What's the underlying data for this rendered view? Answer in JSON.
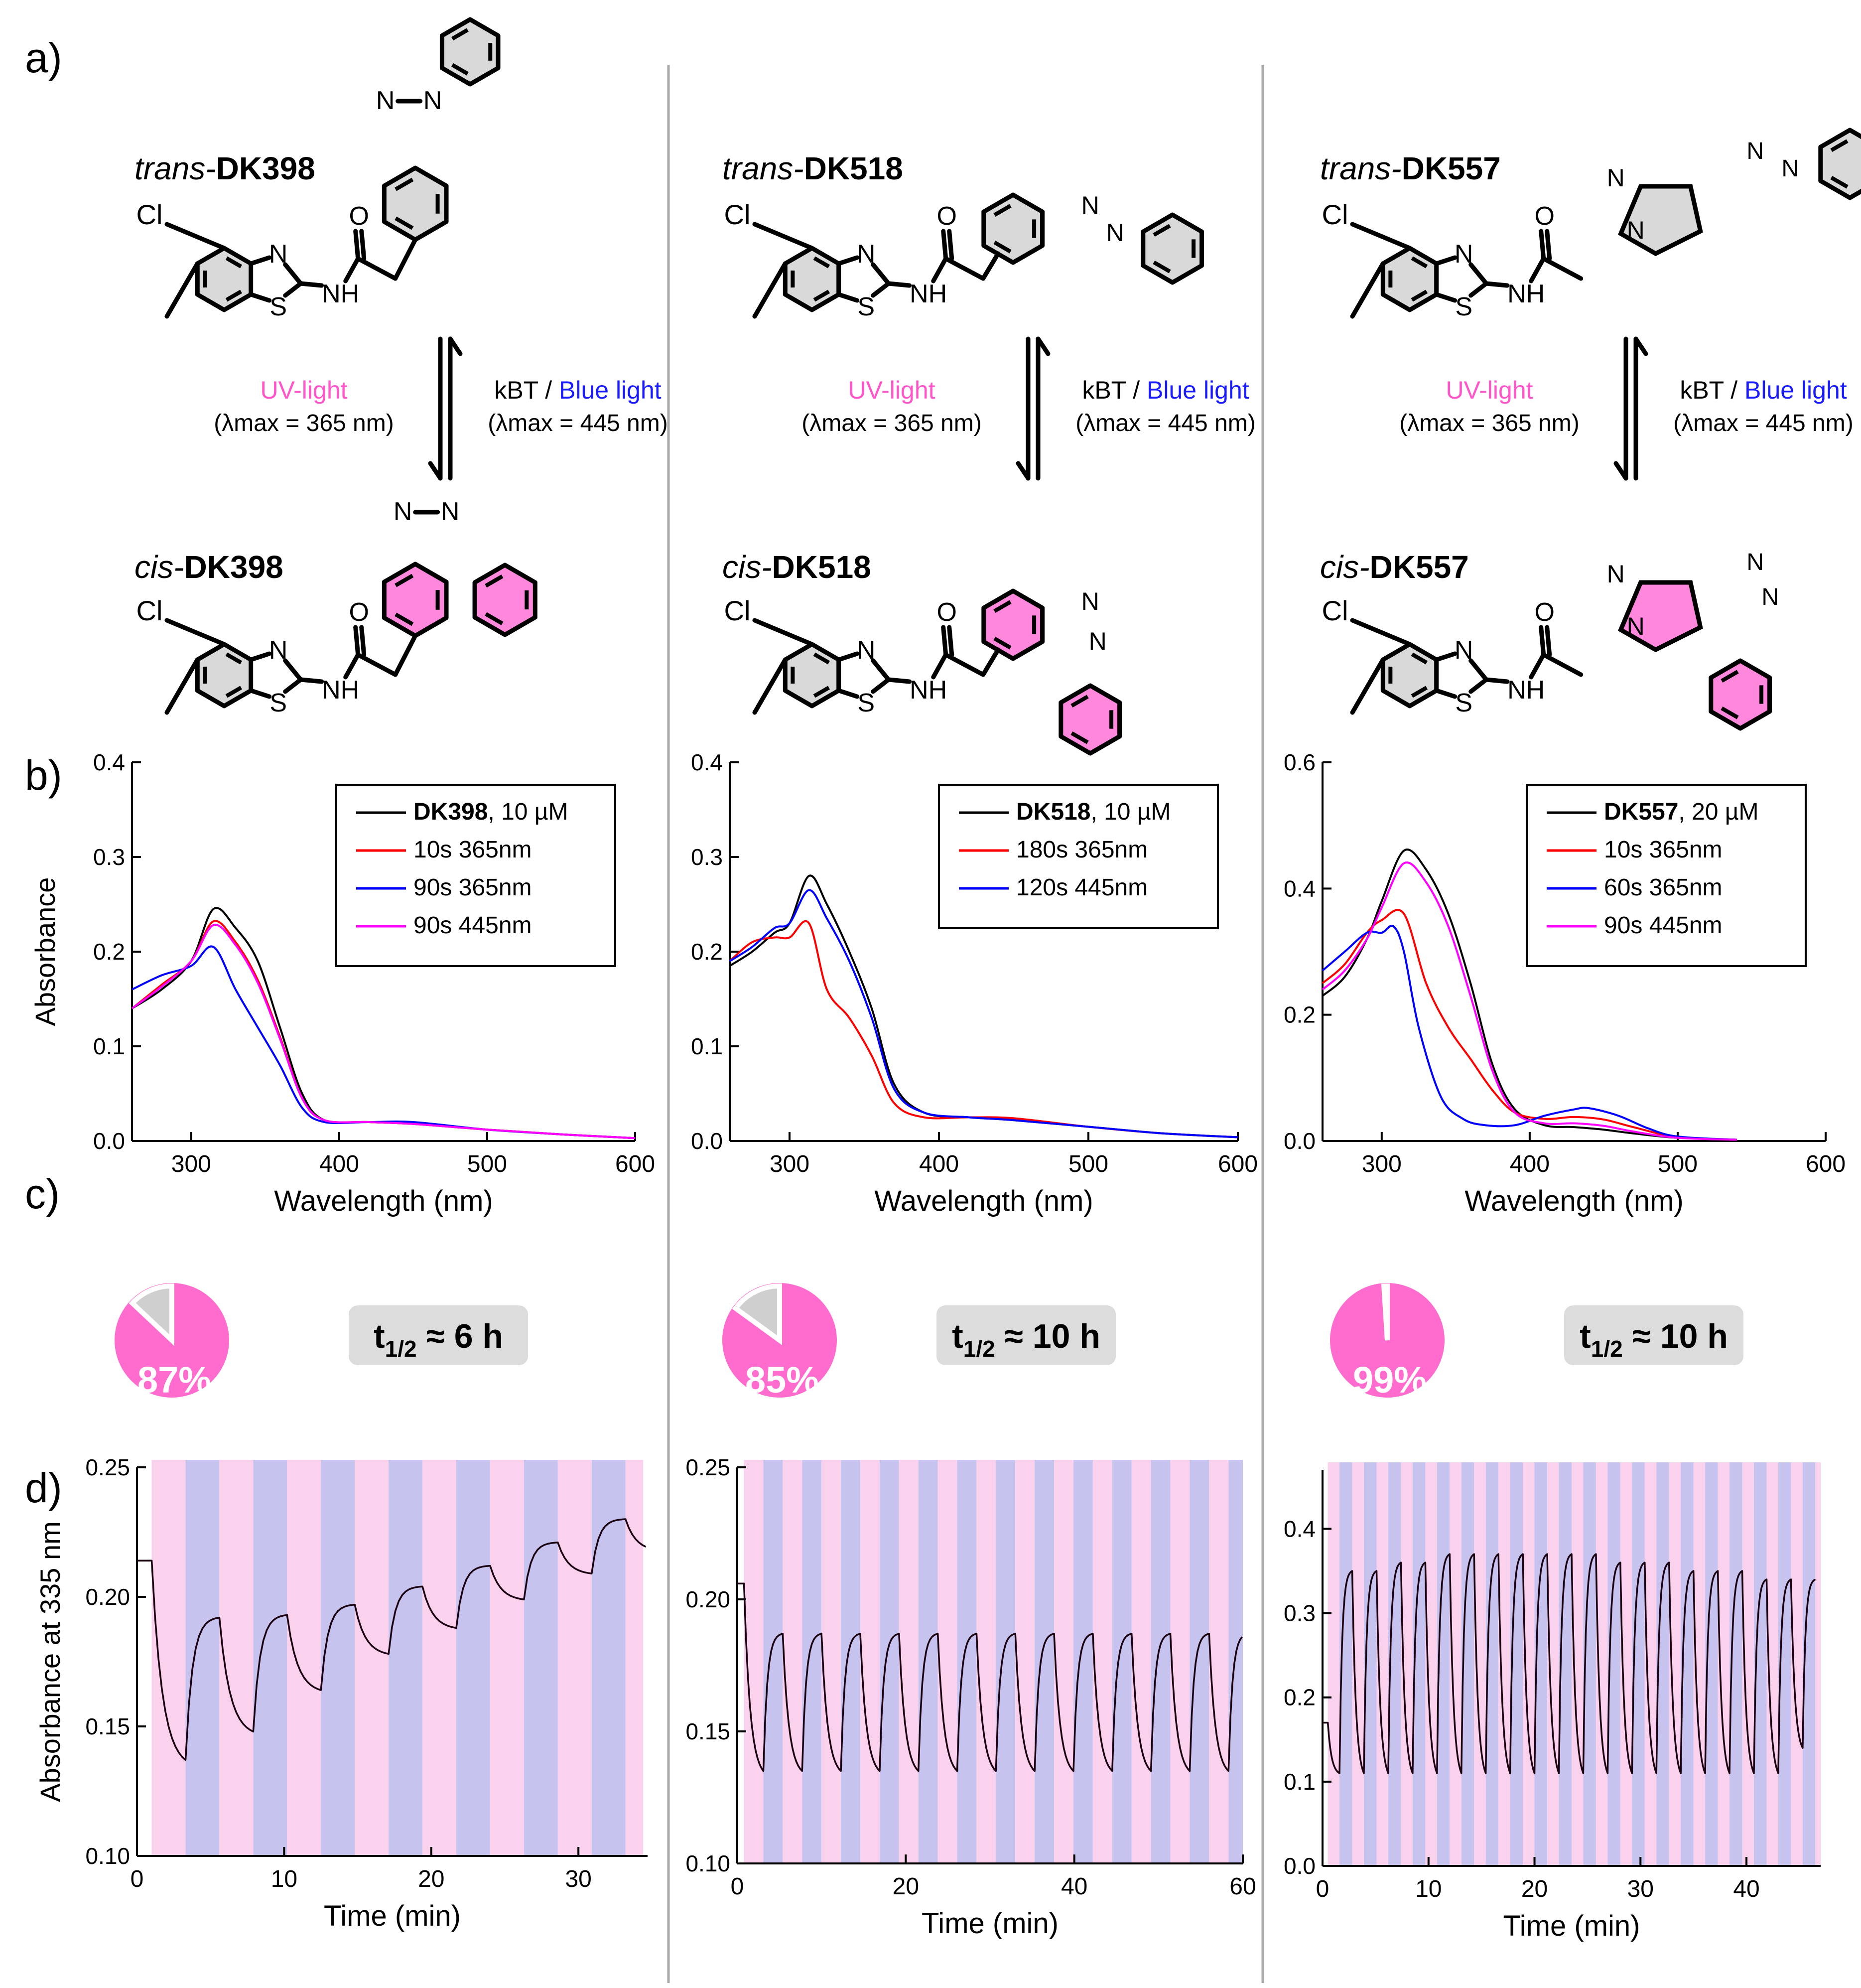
{
  "panel_letters": [
    "a)",
    "b)",
    "c)",
    "d)"
  ],
  "colors": {
    "uv_pink": "#ff55c8",
    "blue_label": "#1a1aff",
    "cis_ring_fill": "#ff88dd",
    "trans_ring_fill": "#d9d9d9",
    "pie_pink": "#ff6ccd",
    "pie_grey": "#cfcfcf",
    "stripe_pink": "#fbd2ee",
    "stripe_blue": "#c6c4ef",
    "series_black": "#000000",
    "series_red": "#ff0000",
    "series_blue": "#0000ff",
    "series_magenta": "#ff00ff"
  },
  "schemes": [
    {
      "compound": "DK398",
      "trans_prefix": "trans-",
      "cis_prefix": "cis-",
      "atoms": {
        "cl": "Cl",
        "n": "N",
        "s": "S",
        "nh": "NH",
        "o": "O"
      },
      "uv_label": "UV-light",
      "uv_lambda": "(λmax = 365 nm)",
      "thermal_label": "kBT / ",
      "blue_label": "Blue light",
      "blue_lambda": "(λmax = 445 nm)"
    },
    {
      "compound": "DK518",
      "trans_prefix": "trans-",
      "cis_prefix": "cis-",
      "atoms": {
        "cl": "Cl",
        "n": "N",
        "s": "S",
        "nh": "NH",
        "o": "O"
      },
      "uv_label": "UV-light",
      "uv_lambda": "(λmax = 365 nm)",
      "thermal_label": "kBT / ",
      "blue_label": "Blue light",
      "blue_lambda": "(λmax = 445 nm)"
    },
    {
      "compound": "DK557",
      "trans_prefix": "trans-",
      "cis_prefix": "cis-",
      "atoms": {
        "cl": "Cl",
        "n": "N",
        "s": "S",
        "nh": "NH",
        "o": "O"
      },
      "uv_label": "UV-light",
      "uv_lambda": "(λmax = 365 nm)",
      "thermal_label": "kBT / ",
      "blue_label": "Blue light",
      "blue_lambda": "(λmax = 445 nm)"
    }
  ],
  "pss": [
    {
      "compound": "DK398",
      "percent": 87,
      "label": "87%",
      "half_life": "t1/2 ≈ 6 h"
    },
    {
      "compound": "DK518",
      "percent": 85,
      "label": "85%",
      "half_life": "t1/2 ≈ 10 h"
    },
    {
      "compound": "DK557",
      "percent": 99,
      "label": "99%",
      "half_life": "t1/2 ≈ 10 h"
    }
  ],
  "chart_data": [
    {
      "id": "b1",
      "type": "line",
      "panel": "b",
      "xlabel": "Wavelength (nm)",
      "ylabel": "Absorbance",
      "xlim": [
        260,
        600
      ],
      "ylim": [
        0.0,
        0.4
      ],
      "xticks": [
        300,
        400,
        500,
        600
      ],
      "xtick_labels": [
        "300",
        "400",
        "500",
        "600"
      ],
      "yticks": [
        0.0,
        0.1,
        0.2,
        0.3,
        0.4
      ],
      "ytick_labels": [
        "0.0",
        "0.1",
        "0.2",
        "0.3",
        "0.4"
      ],
      "legend_position": "top-right",
      "series": [
        {
          "name": "DK398, 10 µM",
          "name_bold": "DK398",
          "name_rest": ", 10 µM",
          "color": "#000000",
          "x": [
            260,
            280,
            300,
            315,
            330,
            345,
            360,
            375,
            390,
            420,
            450,
            500,
            550,
            600
          ],
          "y": [
            0.14,
            0.16,
            0.19,
            0.245,
            0.225,
            0.19,
            0.12,
            0.05,
            0.022,
            0.02,
            0.018,
            0.012,
            0.007,
            0.003
          ]
        },
        {
          "name": "10s 365nm",
          "color": "#ff0000",
          "x": [
            260,
            280,
            300,
            315,
            330,
            345,
            360,
            375,
            390,
            420,
            450,
            500,
            550,
            600
          ],
          "y": [
            0.14,
            0.165,
            0.19,
            0.232,
            0.21,
            0.17,
            0.11,
            0.045,
            0.022,
            0.02,
            0.018,
            0.012,
            0.007,
            0.003
          ]
        },
        {
          "name": "90s 365nm",
          "color": "#0000ff",
          "x": [
            260,
            280,
            300,
            315,
            330,
            345,
            360,
            375,
            390,
            420,
            450,
            500,
            550,
            600
          ],
          "y": [
            0.16,
            0.175,
            0.185,
            0.205,
            0.16,
            0.12,
            0.08,
            0.035,
            0.02,
            0.02,
            0.02,
            0.012,
            0.007,
            0.003
          ]
        },
        {
          "name": "90s 445nm",
          "color": "#ff00ff",
          "x": [
            260,
            280,
            300,
            315,
            330,
            345,
            360,
            375,
            390,
            420,
            450,
            500,
            550,
            600
          ],
          "y": [
            0.14,
            0.163,
            0.19,
            0.228,
            0.207,
            0.167,
            0.108,
            0.045,
            0.022,
            0.02,
            0.018,
            0.012,
            0.007,
            0.003
          ]
        }
      ]
    },
    {
      "id": "b2",
      "type": "line",
      "panel": "b",
      "xlabel": "Wavelength (nm)",
      "ylabel": "",
      "xlim": [
        260,
        600
      ],
      "ylim": [
        0.0,
        0.4
      ],
      "xticks": [
        300,
        400,
        500,
        600
      ],
      "xtick_labels": [
        "300",
        "400",
        "500",
        "600"
      ],
      "yticks": [
        0.0,
        0.1,
        0.2,
        0.3,
        0.4
      ],
      "ytick_labels": [
        "0.0",
        "0.1",
        "0.2",
        "0.3",
        "0.4"
      ],
      "legend_position": "top-right",
      "series": [
        {
          "name": "DK518, 10 µM",
          "name_bold": "DK518",
          "name_rest": ", 10 µM",
          "color": "#000000",
          "x": [
            260,
            275,
            290,
            300,
            313,
            325,
            340,
            355,
            370,
            390,
            420,
            450,
            500,
            550,
            600
          ],
          "y": [
            0.185,
            0.2,
            0.22,
            0.23,
            0.28,
            0.25,
            0.2,
            0.14,
            0.06,
            0.03,
            0.025,
            0.022,
            0.015,
            0.008,
            0.004
          ]
        },
        {
          "name": "180s 365nm",
          "color": "#ff0000",
          "x": [
            260,
            275,
            290,
            300,
            313,
            325,
            340,
            355,
            370,
            390,
            420,
            450,
            500,
            550,
            600
          ],
          "y": [
            0.19,
            0.21,
            0.215,
            0.215,
            0.23,
            0.16,
            0.13,
            0.09,
            0.04,
            0.025,
            0.025,
            0.024,
            0.015,
            0.008,
            0.004
          ]
        },
        {
          "name": "120s 445nm",
          "color": "#0000ff",
          "x": [
            260,
            275,
            290,
            300,
            313,
            325,
            340,
            355,
            370,
            390,
            420,
            450,
            500,
            550,
            600
          ],
          "y": [
            0.19,
            0.205,
            0.225,
            0.23,
            0.265,
            0.235,
            0.19,
            0.13,
            0.055,
            0.03,
            0.025,
            0.022,
            0.015,
            0.008,
            0.004
          ]
        }
      ]
    },
    {
      "id": "b3",
      "type": "line",
      "panel": "b",
      "xlabel": "Wavelength (nm)",
      "ylabel": "",
      "xlim": [
        260,
        600
      ],
      "ylim": [
        0.0,
        0.6
      ],
      "xticks": [
        300,
        400,
        500,
        600
      ],
      "xtick_labels": [
        "300",
        "400",
        "500",
        "600"
      ],
      "yticks": [
        0.0,
        0.2,
        0.4,
        0.6
      ],
      "ytick_labels": [
        "0.0",
        "0.2",
        "0.4",
        "0.6"
      ],
      "legend_position": "top-right",
      "series": [
        {
          "name": "DK557, 20 µM",
          "name_bold": "DK557",
          "name_rest": ", 20 µM",
          "color": "#000000",
          "x": [
            260,
            275,
            290,
            300,
            315,
            330,
            345,
            360,
            375,
            390,
            410,
            430,
            450,
            470,
            500,
            540
          ],
          "y": [
            0.23,
            0.26,
            0.32,
            0.38,
            0.46,
            0.43,
            0.36,
            0.25,
            0.12,
            0.05,
            0.025,
            0.022,
            0.018,
            0.012,
            0.005,
            0.002
          ]
        },
        {
          "name": "10s 365nm",
          "color": "#ff0000",
          "x": [
            260,
            275,
            290,
            300,
            315,
            330,
            345,
            360,
            375,
            390,
            410,
            430,
            450,
            470,
            500,
            540
          ],
          "y": [
            0.25,
            0.28,
            0.33,
            0.35,
            0.36,
            0.25,
            0.18,
            0.13,
            0.08,
            0.045,
            0.035,
            0.038,
            0.034,
            0.022,
            0.006,
            0.002
          ]
        },
        {
          "name": "60s 365nm",
          "color": "#0000ff",
          "x": [
            260,
            275,
            290,
            300,
            308,
            315,
            325,
            340,
            355,
            370,
            390,
            410,
            430,
            440,
            460,
            480,
            500,
            540
          ],
          "y": [
            0.27,
            0.3,
            0.33,
            0.33,
            0.34,
            0.3,
            0.18,
            0.07,
            0.035,
            0.025,
            0.025,
            0.04,
            0.05,
            0.052,
            0.04,
            0.02,
            0.007,
            0.002
          ]
        },
        {
          "name": "90s 445nm",
          "color": "#ff00ff",
          "x": [
            260,
            275,
            290,
            300,
            315,
            330,
            345,
            360,
            375,
            390,
            410,
            430,
            450,
            470,
            500,
            540
          ],
          "y": [
            0.24,
            0.27,
            0.32,
            0.37,
            0.44,
            0.41,
            0.34,
            0.23,
            0.11,
            0.045,
            0.028,
            0.028,
            0.024,
            0.015,
            0.005,
            0.002
          ]
        }
      ]
    },
    {
      "id": "d1",
      "type": "line",
      "panel": "d",
      "xlabel": "Time (min)",
      "ylabel": "Absorbance at 335 nm",
      "xlim": [
        0,
        34.7
      ],
      "ylim": [
        0.1,
        0.25
      ],
      "xticks": [
        0,
        10,
        20,
        30
      ],
      "xtick_labels": [
        "0",
        "10",
        "20",
        "30"
      ],
      "yticks": [
        0.1,
        0.15,
        0.2,
        0.25
      ],
      "ytick_labels": [
        "0.10",
        "0.15",
        "0.20",
        "0.25"
      ],
      "stripes": {
        "start": 1.0,
        "end": 34.4,
        "uv_duration": 2.3,
        "blue_duration": 2.3,
        "first": "uv"
      },
      "cycles": {
        "t0": 1.0,
        "start_value": 0.214,
        "peaks": [
          0.192,
          0.193,
          0.197,
          0.204,
          0.212,
          0.221,
          0.23,
          0.22
        ],
        "troughs": [
          0.137,
          0.148,
          0.164,
          0.178,
          0.188,
          0.199,
          0.209,
          0.218
        ]
      }
    },
    {
      "id": "d2",
      "type": "line",
      "panel": "d",
      "xlabel": "Time (min)",
      "ylabel": "",
      "xlim": [
        0,
        60
      ],
      "ylim": [
        0.1,
        0.25
      ],
      "xticks": [
        0,
        20,
        40,
        60
      ],
      "xtick_labels": [
        "0",
        "20",
        "40",
        "60"
      ],
      "yticks": [
        0.1,
        0.15,
        0.2,
        0.25
      ],
      "ytick_labels": [
        "0.10",
        "0.15",
        "0.20",
        "0.25"
      ],
      "stripes": {
        "start": 0.8,
        "end": 60.0,
        "uv_duration": 2.3,
        "blue_duration": 2.3,
        "first": "uv"
      },
      "cycles": {
        "t0": 0.8,
        "start_value": 0.206,
        "peaks": [
          0.187,
          0.187,
          0.187,
          0.187,
          0.187,
          0.187,
          0.187,
          0.187,
          0.187,
          0.187,
          0.187,
          0.187,
          0.187
        ],
        "troughs": [
          0.135,
          0.135,
          0.135,
          0.135,
          0.135,
          0.135,
          0.135,
          0.135,
          0.135,
          0.135,
          0.135,
          0.135,
          0.135
        ]
      }
    },
    {
      "id": "d3",
      "type": "line",
      "panel": "d",
      "xlabel": "Time (min)",
      "ylabel": "",
      "xlim": [
        0,
        47
      ],
      "ylim": [
        0.0,
        0.47
      ],
      "xticks": [
        0,
        10,
        20,
        30,
        40
      ],
      "xtick_labels": [
        "0",
        "10",
        "20",
        "30",
        "40"
      ],
      "yticks": [
        0.0,
        0.1,
        0.2,
        0.3,
        0.4
      ],
      "ytick_labels": [
        "0.0",
        "0.1",
        "0.2",
        "0.3",
        "0.4"
      ],
      "stripes": {
        "start": 0.5,
        "end": 47.0,
        "uv_duration": 1.1,
        "blue_duration": 1.2,
        "first": "uv"
      },
      "cycles": {
        "t0": 0.5,
        "start_value": 0.17,
        "peaks": [
          0.35,
          0.35,
          0.36,
          0.36,
          0.37,
          0.37,
          0.37,
          0.37,
          0.37,
          0.37,
          0.37,
          0.36,
          0.36,
          0.36,
          0.35,
          0.35,
          0.35,
          0.34,
          0.34,
          0.34
        ],
        "troughs": [
          0.11,
          0.11,
          0.11,
          0.11,
          0.11,
          0.11,
          0.11,
          0.11,
          0.11,
          0.11,
          0.11,
          0.11,
          0.11,
          0.11,
          0.11,
          0.11,
          0.11,
          0.11,
          0.11,
          0.14
        ]
      }
    }
  ]
}
